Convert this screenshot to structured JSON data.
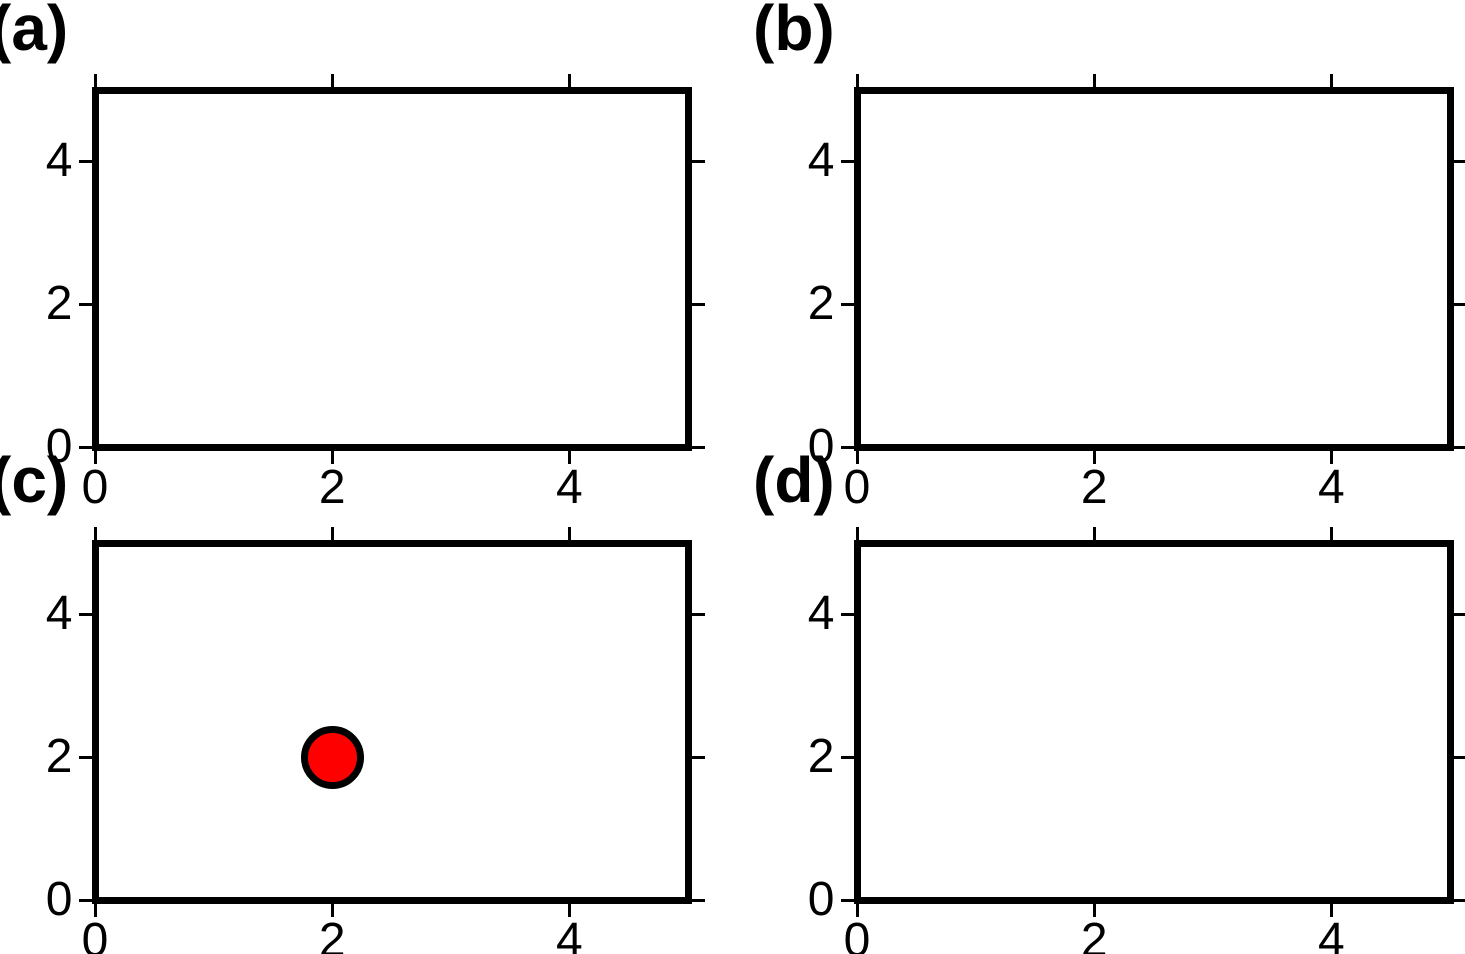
{
  "figure": {
    "background": "#ffffff",
    "frame_color": "#000000",
    "tick_color": "#000000",
    "tick_label_color": "#000000"
  },
  "chart_data": [
    {
      "id": "a",
      "type": "scatter",
      "panel_label": "(a)",
      "title": "",
      "xlabel": "",
      "ylabel": "",
      "xlim": [
        0,
        5
      ],
      "ylim": [
        0,
        5
      ],
      "xticks": [
        0,
        2,
        4
      ],
      "yticks": [
        0,
        2,
        4
      ],
      "xtick_labels": [
        "0",
        "2",
        "4"
      ],
      "ytick_labels": [
        "0",
        "2",
        "4"
      ],
      "grid": false,
      "points": []
    },
    {
      "id": "b",
      "type": "scatter",
      "panel_label": "(b)",
      "title": "",
      "xlabel": "",
      "ylabel": "",
      "xlim": [
        0,
        5
      ],
      "ylim": [
        0,
        5
      ],
      "xticks": [
        0,
        2,
        4
      ],
      "yticks": [
        0,
        2,
        4
      ],
      "xtick_labels": [
        "0",
        "2",
        "4"
      ],
      "ytick_labels": [
        "0",
        "2",
        "4"
      ],
      "grid": false,
      "points": []
    },
    {
      "id": "c",
      "type": "scatter",
      "panel_label": "(c)",
      "title": "",
      "xlabel": "",
      "ylabel": "",
      "xlim": [
        0,
        5
      ],
      "ylim": [
        0,
        5
      ],
      "xticks": [
        0,
        2,
        4
      ],
      "yticks": [
        0,
        2,
        4
      ],
      "xtick_labels": [
        "0",
        "2",
        "4"
      ],
      "ytick_labels": [
        "0",
        "2",
        "4"
      ],
      "grid": false,
      "points": [
        {
          "x": 2,
          "y": 2,
          "fill": "#ff0000",
          "edge": "#000000"
        }
      ]
    },
    {
      "id": "d",
      "type": "scatter",
      "panel_label": "(d)",
      "title": "",
      "xlabel": "",
      "ylabel": "",
      "xlim": [
        0,
        5
      ],
      "ylim": [
        0,
        5
      ],
      "xticks": [
        0,
        2,
        4
      ],
      "yticks": [
        0,
        2,
        4
      ],
      "xtick_labels": [
        "0",
        "2",
        "4"
      ],
      "ytick_labels": [
        "0",
        "2",
        "4"
      ],
      "grid": false,
      "points": []
    }
  ]
}
